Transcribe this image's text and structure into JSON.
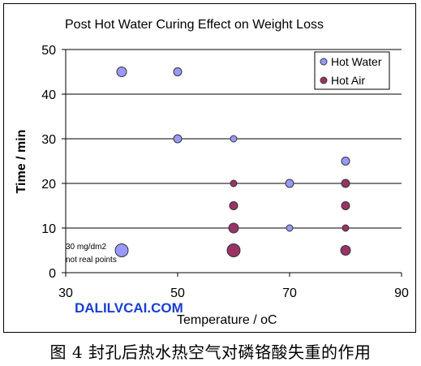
{
  "chart_data": {
    "type": "scatter",
    "title": "Post Hot Water Curing Effect on Weight Loss",
    "xlabel": "Temperature / oC",
    "ylabel": "Time / min",
    "xlim": [
      30,
      90
    ],
    "ylim": [
      0,
      50
    ],
    "xticks": [
      30,
      50,
      70,
      90
    ],
    "yticks": [
      0,
      10,
      20,
      30,
      40,
      50
    ],
    "grid": "horizontal",
    "legend_position": "top-right",
    "series": [
      {
        "name": "Hot Water",
        "color": "#9999ff",
        "points": [
          {
            "x": 40,
            "y": 45,
            "size": "medium"
          },
          {
            "x": 50,
            "y": 45,
            "size": "small"
          },
          {
            "x": 50,
            "y": 30,
            "size": "small"
          },
          {
            "x": 60,
            "y": 30,
            "size": "tiny"
          },
          {
            "x": 70,
            "y": 20,
            "size": "small"
          },
          {
            "x": 70,
            "y": 10,
            "size": "tiny"
          },
          {
            "x": 80,
            "y": 25,
            "size": "small"
          },
          {
            "x": 40,
            "y": 5,
            "size": "large"
          }
        ]
      },
      {
        "name": "Hot Air",
        "color": "#993366",
        "points": [
          {
            "x": 60,
            "y": 20,
            "size": "tiny"
          },
          {
            "x": 60,
            "y": 15,
            "size": "small"
          },
          {
            "x": 60,
            "y": 10,
            "size": "medium"
          },
          {
            "x": 60,
            "y": 5,
            "size": "large"
          },
          {
            "x": 80,
            "y": 20,
            "size": "small"
          },
          {
            "x": 80,
            "y": 15,
            "size": "small"
          },
          {
            "x": 80,
            "y": 10,
            "size": "tiny"
          },
          {
            "x": 80,
            "y": 5,
            "size": "medium"
          }
        ]
      }
    ],
    "annotation_lines": [
      "30 mg/dm2",
      "not real points"
    ]
  },
  "watermark": "DALILVCAI.COM",
  "watermark_color": "#1a3fd1",
  "caption": "图 4 封孔后热水热空气对磷铬酸失重的作用"
}
